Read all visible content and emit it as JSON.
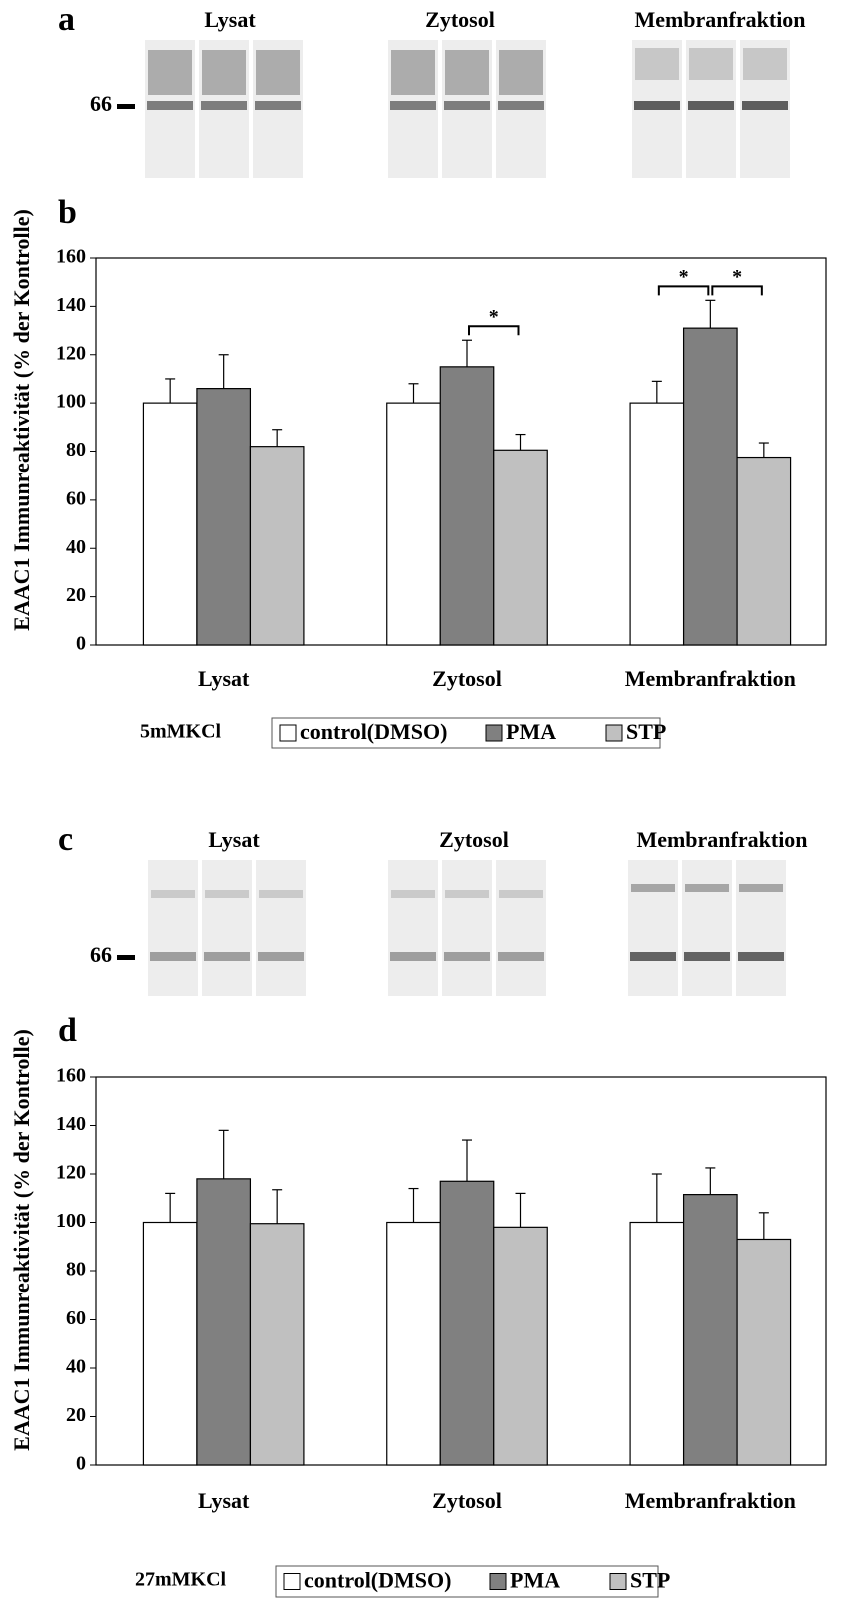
{
  "blots": [
    {
      "panel": "a",
      "groups": [
        "Lysat",
        "Zytosol",
        "Membranfraktion"
      ],
      "marker": "66"
    },
    {
      "panel": "c",
      "groups": [
        "Lysat",
        "Zytosol",
        "Membranfraktion"
      ],
      "marker": "66"
    }
  ],
  "chart_data": [
    {
      "type": "bar",
      "panel": "b",
      "y_label": "EAAC1 Immunreaktivität (% der Kontrolle)",
      "condition": "5mMKCl",
      "categories": [
        "Lysat",
        "Zytosol",
        "Membranfraktion"
      ],
      "series": [
        {
          "name": "control(DMSO)",
          "color": "#ffffff",
          "values": [
            100,
            100,
            100
          ],
          "errors": [
            10,
            8,
            9
          ]
        },
        {
          "name": "PMA",
          "color": "#808080",
          "values": [
            106,
            115,
            131
          ],
          "errors": [
            14,
            11,
            11.5
          ]
        },
        {
          "name": "STP",
          "color": "#c0c0c0",
          "values": [
            82,
            80.5,
            77.5
          ],
          "errors": [
            7,
            6.5,
            6
          ]
        }
      ],
      "annotations": [
        {
          "text": "*",
          "category": 1,
          "between": [
            1,
            2
          ]
        },
        {
          "text": "*",
          "category": 2,
          "between": [
            0,
            1
          ]
        },
        {
          "text": "*",
          "category": 2,
          "between": [
            1,
            2
          ]
        }
      ],
      "ylim": [
        0,
        160
      ],
      "yticks": [
        0,
        20,
        40,
        60,
        80,
        100,
        120,
        140,
        160
      ]
    },
    {
      "type": "bar",
      "panel": "d",
      "y_label": "EAAC1 Immunreaktivität (% der Kontrolle)",
      "condition": "27mMKCl",
      "categories": [
        "Lysat",
        "Zytosol",
        "Membranfraktion"
      ],
      "series": [
        {
          "name": "control(DMSO)",
          "color": "#ffffff",
          "values": [
            100,
            100,
            100
          ],
          "errors": [
            12,
            14,
            20
          ]
        },
        {
          "name": "PMA",
          "color": "#808080",
          "values": [
            118,
            117,
            111.5
          ],
          "errors": [
            20,
            17,
            11
          ]
        },
        {
          "name": "STP",
          "color": "#c0c0c0",
          "values": [
            99.5,
            98,
            93
          ],
          "errors": [
            14,
            14,
            11
          ]
        }
      ],
      "annotations": [],
      "ylim": [
        0,
        160
      ],
      "yticks": [
        0,
        20,
        40,
        60,
        80,
        100,
        120,
        140,
        160
      ]
    }
  ]
}
